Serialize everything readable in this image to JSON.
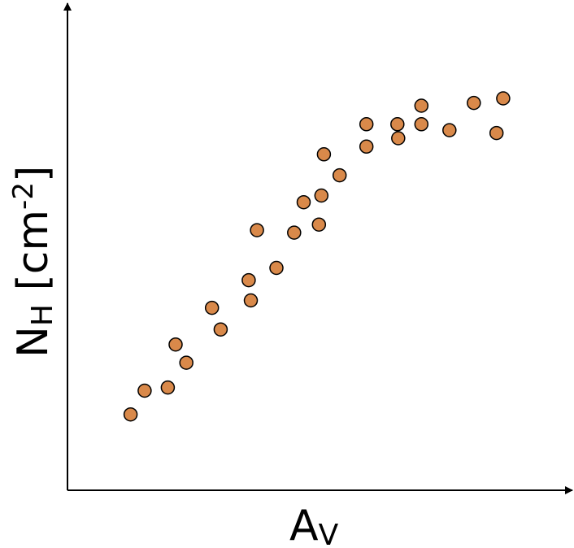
{
  "chart_data": {
    "type": "scatter",
    "title": "",
    "xlabel": {
      "main": "A",
      "sub": "V"
    },
    "ylabel": {
      "main": "N",
      "sub": "H",
      "bracket_open": " [cm",
      "sup": "-2",
      "bracket_close": "]"
    },
    "xlim": [
      0,
      100
    ],
    "ylim": [
      0,
      100
    ],
    "grid": false,
    "legend": "none",
    "marker_color": "#D9894A",
    "marker_edge": "#000000",
    "axis_color": "#000000",
    "x": [
      8,
      11.4,
      17,
      18.9,
      21.5,
      27.7,
      29.8,
      36.6,
      37.1,
      38.6,
      43.3,
      47.6,
      49.9,
      53.6,
      54.2,
      54.8,
      58.6,
      65.1,
      65.1,
      72.6,
      72.8,
      78.4,
      78.4,
      85.2,
      91.1,
      96.6,
      98.2
    ],
    "y": [
      9.6,
      16.4,
      17.3,
      29.6,
      24.4,
      40.1,
      33.9,
      48.0,
      42.2,
      62.3,
      51.5,
      61.6,
      70.3,
      63.9,
      72.2,
      84.0,
      78.0,
      86.2,
      92.6,
      92.6,
      88.6,
      92.6,
      97.9,
      90.9,
      98.7,
      90.1,
      100.0
    ]
  }
}
